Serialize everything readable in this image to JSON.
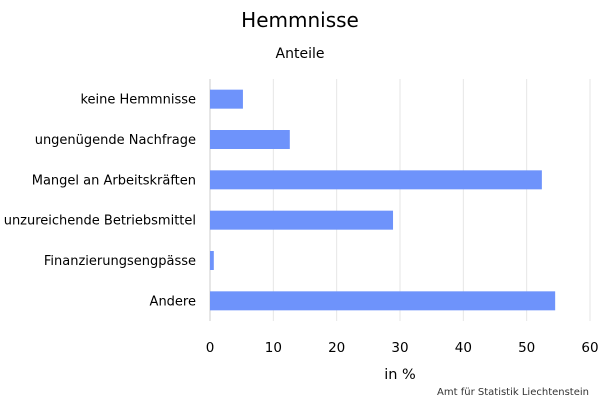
{
  "chart_data": {
    "type": "bar",
    "orientation": "horizontal",
    "title": "Hemmnisse",
    "subtitle": "Anteile",
    "xlabel": "in %",
    "ylabel": "",
    "categories": [
      "keine Hemmnisse",
      "ungenügende Nachfrage",
      "Mangel an Arbeitskräften",
      "unzureichende Betriebsmittel",
      "Finanzierungsengpässe",
      "Andere"
    ],
    "values": [
      5.2,
      12.6,
      52.4,
      28.9,
      0.6,
      54.5
    ],
    "xlim": [
      0,
      60
    ],
    "xticks": [
      0,
      10,
      20,
      30,
      40,
      50,
      60
    ],
    "grid": "vertical",
    "legend": "none",
    "bar_color": "#6e93fb",
    "credit": "Amt für Statistik Liechtenstein"
  }
}
